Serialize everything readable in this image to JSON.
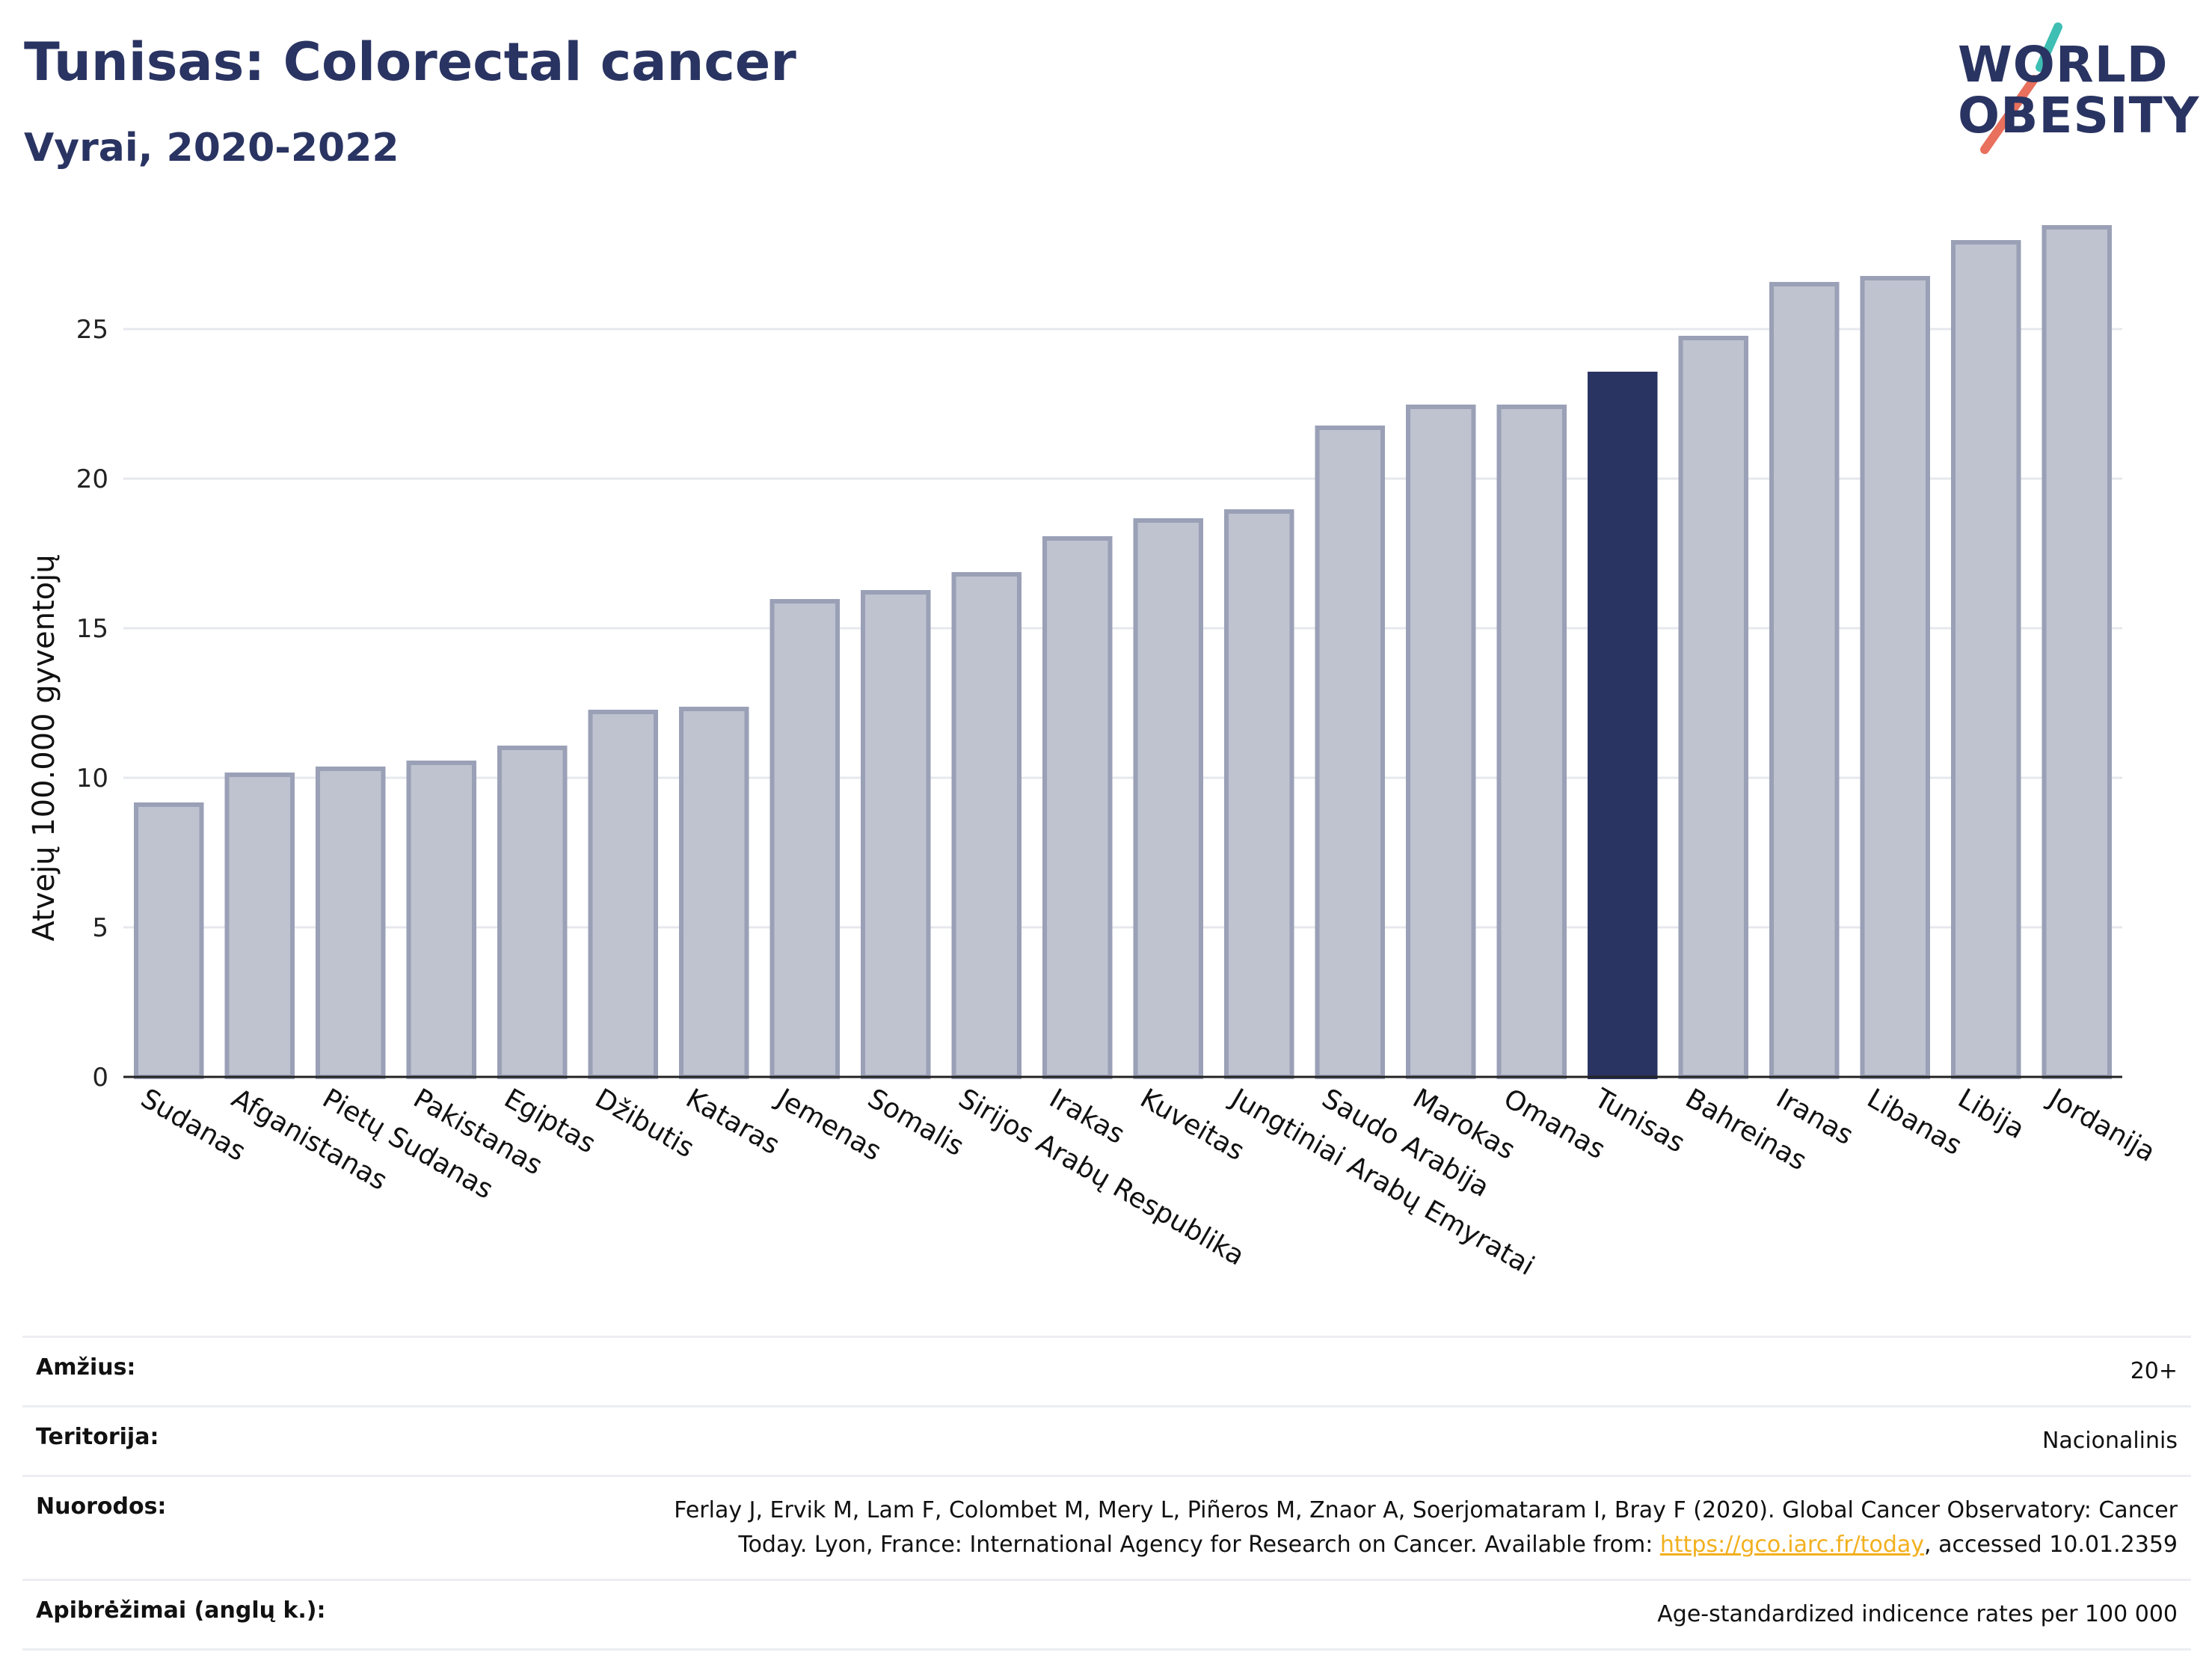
{
  "header": {
    "title": "Tunisas: Colorectal cancer",
    "subtitle": "Vyrai, 2020-2022"
  },
  "logo": {
    "line1": "WORLD",
    "line2": "OBESITY",
    "slash_colors": [
      "#3fbfb3",
      "#e8705d"
    ]
  },
  "colors": {
    "bar": "#bfc3d0",
    "bar_stroke": "#9aa0b6",
    "highlight": "#2a3462",
    "grid": "#e6e8ee",
    "axis": "#222222",
    "link": "#f2b01e"
  },
  "chart_data": {
    "type": "bar",
    "title": "Tunisas: Colorectal cancer",
    "subtitle": "Vyrai, 2020-2022",
    "ylabel": "Atvejų 100.000 gyventojų",
    "xlabel": "",
    "ylim": [
      0,
      28.5
    ],
    "yticks": [
      0,
      5,
      10,
      15,
      20,
      25
    ],
    "grid": true,
    "highlight": "Tunisas",
    "categories": [
      "Sudanas",
      "Afganistanas",
      "Pietų Sudanas",
      "Pakistanas",
      "Egiptas",
      "Džibutis",
      "Kataras",
      "Jemenas",
      "Somalis",
      "Sirijos Arabų Respublika",
      "Irakas",
      "Kuveitas",
      "Jungtiniai Arabų Emyratai",
      "Saudo Arabija",
      "Marokas",
      "Omanas",
      "Tunisas",
      "Bahreinas",
      "Iranas",
      "Libanas",
      "Libija",
      "Jordanija"
    ],
    "values": [
      9.1,
      10.1,
      10.3,
      10.5,
      11.0,
      12.2,
      12.3,
      15.9,
      16.2,
      16.8,
      18.0,
      18.6,
      18.9,
      21.7,
      22.4,
      22.4,
      23.5,
      24.7,
      26.5,
      26.7,
      27.9,
      28.4
    ]
  },
  "info": {
    "rows": [
      {
        "label": "Amžius:",
        "value": "20+"
      },
      {
        "label": "Teritorija:",
        "value": "Nacionalinis"
      },
      {
        "label": "Nuorodos:",
        "value_line1": "Ferlay J, Ervik M, Lam F, Colombet M, Mery L, Piñeros M, Znaor A, Soerjomataram I, Bray F (2020). Global Cancer Observatory: Cancer",
        "value_line2_pre": "Today. Lyon, France: International Agency for Research on Cancer. Available from: ",
        "link": "https://gco.iarc.fr/today",
        "value_line2_post": ", accessed 10.01.2359"
      },
      {
        "label": "Apibrėžimai (anglų k.):",
        "value": "Age-standardized indicence rates per 100 000"
      }
    ]
  }
}
